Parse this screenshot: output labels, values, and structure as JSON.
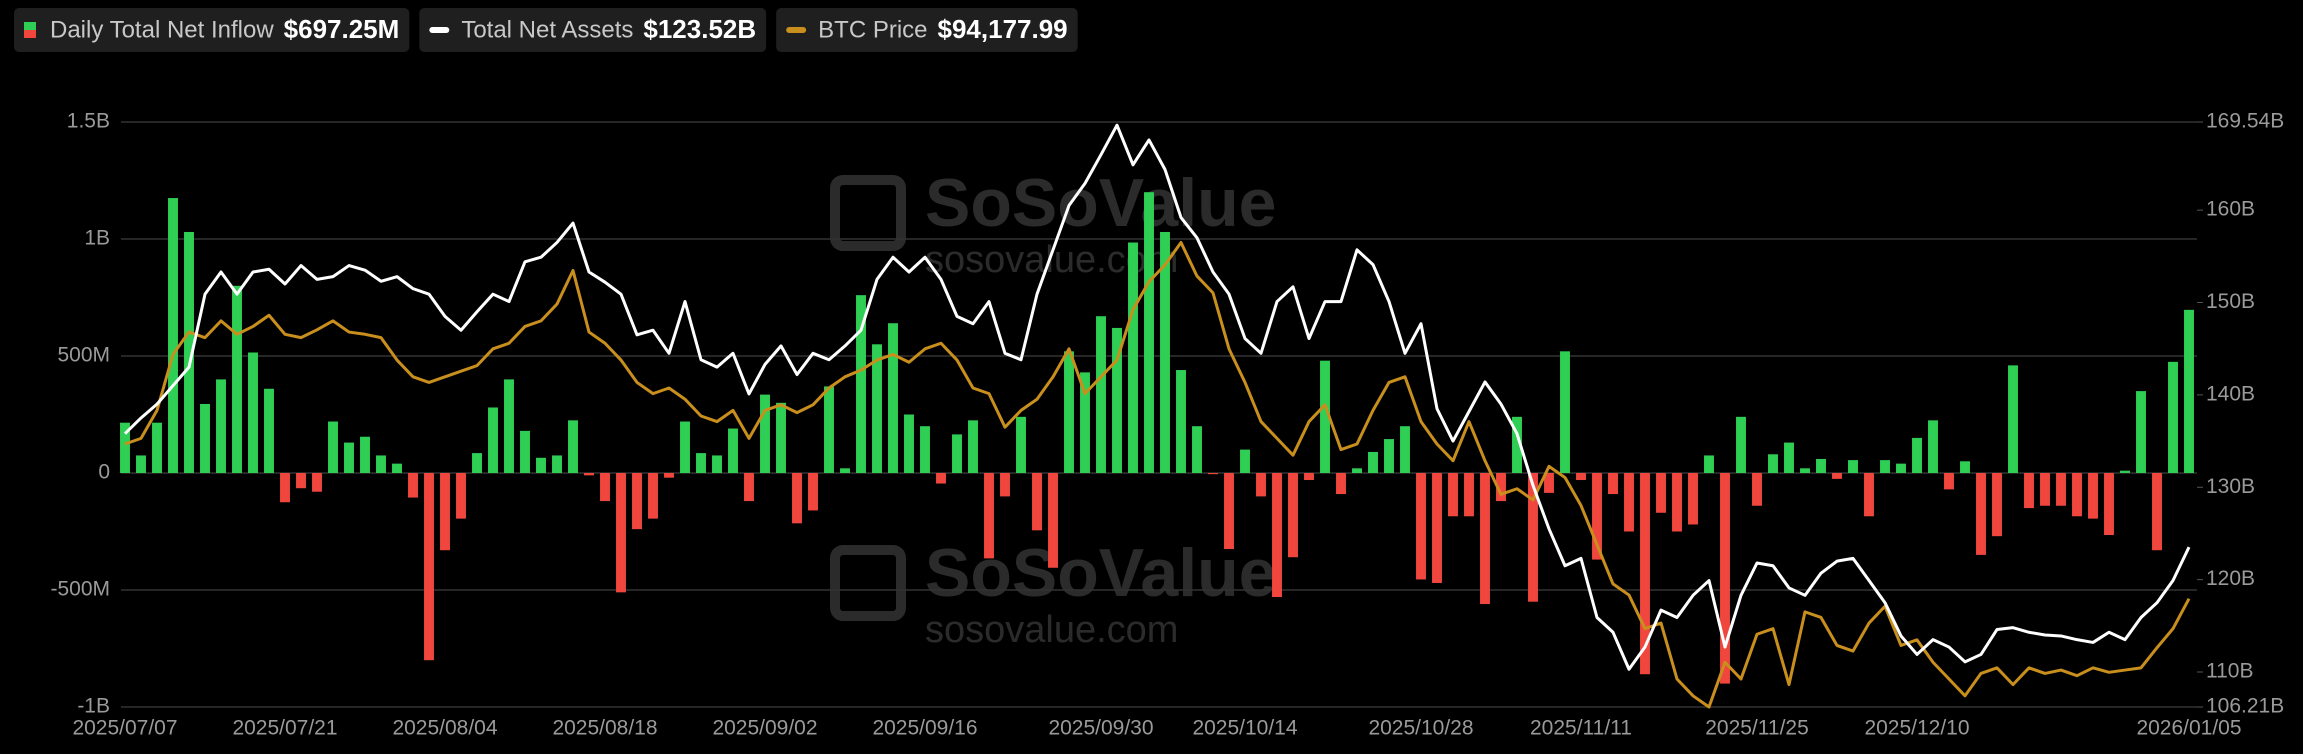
{
  "chart_data": {
    "type": "bar",
    "watermark": [
      "SoSoValue",
      "sosovalue.com"
    ],
    "categories": [
      "2025/07/07",
      null,
      null,
      null,
      null,
      null,
      null,
      null,
      null,
      null,
      "2025/07/21",
      null,
      null,
      null,
      null,
      null,
      null,
      null,
      null,
      null,
      "2025/08/04",
      null,
      null,
      null,
      null,
      null,
      null,
      null,
      null,
      null,
      "2025/08/18",
      null,
      null,
      null,
      null,
      null,
      null,
      null,
      null,
      null,
      "2025/09/02",
      null,
      null,
      null,
      null,
      null,
      null,
      null,
      null,
      null,
      "2025/09/16",
      null,
      null,
      null,
      null,
      null,
      null,
      null,
      null,
      null,
      null,
      "2025/09/30",
      null,
      null,
      null,
      null,
      null,
      null,
      null,
      null,
      "2025/10/14",
      null,
      null,
      null,
      null,
      null,
      null,
      null,
      null,
      null,
      null,
      "2025/10/28",
      null,
      null,
      null,
      null,
      null,
      null,
      null,
      null,
      null,
      "2025/11/11",
      null,
      null,
      null,
      null,
      null,
      null,
      null,
      null,
      null,
      null,
      "2025/11/25",
      null,
      null,
      null,
      null,
      null,
      null,
      null,
      null,
      null,
      "2025/12/10",
      null,
      null,
      null,
      null,
      null,
      null,
      null,
      null,
      null,
      null,
      null,
      null,
      null,
      null,
      null,
      null,
      "2026/01/05"
    ],
    "series": [
      {
        "name": "Daily Total Net Inflow",
        "type": "bar",
        "color": "#2fcf55",
        "negative_color": "#f0463e",
        "current_label": "$697.25M",
        "values": [
          215,
          75,
          215,
          1175,
          1030,
          295,
          400,
          800,
          515,
          360,
          -125,
          -65,
          -80,
          220,
          130,
          155,
          75,
          40,
          -105,
          -800,
          -330,
          -195,
          85,
          280,
          400,
          180,
          65,
          75,
          225,
          -10,
          -120,
          -510,
          -240,
          -195,
          -20,
          220,
          85,
          75,
          190,
          -120,
          335,
          300,
          -215,
          -160,
          370,
          20,
          760,
          550,
          640,
          250,
          200,
          -45,
          165,
          225,
          -365,
          -100,
          240,
          -245,
          -405,
          520,
          430,
          670,
          620,
          985,
          1200,
          1030,
          440,
          200,
          -5,
          -325,
          100,
          -100,
          -530,
          -360,
          -30,
          480,
          -90,
          20,
          90,
          145,
          200,
          -455,
          -470,
          -185,
          -185,
          -560,
          -120,
          240,
          -550,
          -85,
          520,
          -30,
          -370,
          -90,
          -250,
          -860,
          -170,
          -250,
          -220,
          75,
          -900,
          240,
          -140,
          80,
          130,
          20,
          60,
          -25,
          55,
          -185,
          55,
          40,
          150,
          225,
          -70,
          50,
          -350,
          -270,
          460,
          -150,
          -140,
          -140,
          -185,
          -195,
          -265,
          10,
          350,
          -330,
          475,
          697.25
        ]
      },
      {
        "name": "Total Net Assets",
        "type": "line",
        "axis": "y2",
        "color": "#ffffff",
        "current_label": "$123.52B",
        "values": [
          135.8,
          137.5,
          139,
          141,
          143,
          150.9,
          153.3,
          150.9,
          153.3,
          153.6,
          152,
          154,
          152.5,
          152.8,
          154,
          153.5,
          152.3,
          152.8,
          151.5,
          150.9,
          148.5,
          147,
          149,
          150.9,
          150.1,
          154.4,
          154.9,
          156.5,
          158.6,
          153.3,
          152.2,
          150.9,
          146.5,
          147,
          144.5,
          150.1,
          143.8,
          143,
          144.5,
          140.1,
          143.3,
          145.3,
          142.2,
          144.5,
          143.8,
          145.3,
          147,
          152.5,
          154.9,
          153.3,
          154.9,
          152.5,
          148.5,
          147.7,
          150.1,
          144.5,
          143.8,
          150.9,
          155.7,
          160.5,
          162.9,
          166,
          169.2,
          164.9,
          167.6,
          164.4,
          159.2,
          157,
          153.3,
          150.9,
          146.1,
          144.5,
          150.1,
          151.7,
          146.1,
          150.1,
          150.1,
          155.7,
          154.1,
          150.1,
          144.5,
          147.7,
          138.5,
          135,
          138.2,
          141.4,
          139,
          135.8,
          130.2,
          125.5,
          121.5,
          122.3,
          115.9,
          114.3,
          110.3,
          112.7,
          116.7,
          115.9,
          118.3,
          119.9,
          112.7,
          118.3,
          121.8,
          121.5,
          119.1,
          118.3,
          120.7,
          122,
          122.3,
          119.9,
          117.5,
          113.9,
          111.9,
          113.5,
          112.7,
          111.1,
          111.9,
          114.6,
          114.8,
          114.3,
          114,
          113.9,
          113.5,
          113.2,
          114.3,
          113.5,
          115.9,
          117.5,
          119.9,
          123.52
        ]
      },
      {
        "name": "BTC Price",
        "type": "line",
        "axis": "y3",
        "color": "#c98f1d",
        "current_label": "$94,177.99",
        "values": [
          108000,
          108500,
          111000,
          116000,
          118000,
          117500,
          119000,
          117800,
          118500,
          119500,
          117800,
          117500,
          118200,
          119000,
          118000,
          117800,
          117500,
          115500,
          114000,
          113500,
          114000,
          114500,
          115000,
          116500,
          117000,
          118500,
          119000,
          120500,
          123500,
          118000,
          117000,
          115500,
          113500,
          112500,
          113000,
          112000,
          110500,
          110000,
          111000,
          108500,
          111000,
          111500,
          110800,
          111500,
          113000,
          114000,
          114600,
          115500,
          116000,
          115300,
          116500,
          117000,
          115500,
          113000,
          112500,
          109500,
          111000,
          112000,
          114000,
          116500,
          112500,
          114000,
          115500,
          120000,
          122500,
          124000,
          126000,
          123000,
          121500,
          116500,
          113500,
          110000,
          108500,
          107000,
          110000,
          111500,
          107500,
          108000,
          111000,
          113500,
          114000,
          110000,
          108000,
          106500,
          110000,
          106500,
          103500,
          104000,
          103000,
          106000,
          105000,
          102500,
          99000,
          95500,
          94500,
          91500,
          92000,
          87000,
          85500,
          84500,
          88500,
          87000,
          91000,
          91500,
          86500,
          93000,
          92500,
          90000,
          89500,
          92000,
          93500,
          90000,
          90500,
          88500,
          87000,
          85500,
          87500,
          88000,
          86500,
          88000,
          87500,
          87800,
          87300,
          88000,
          87600,
          87800,
          88000,
          89800,
          91500,
          94177.99
        ]
      }
    ],
    "ylim": [
      -1000,
      1500
    ],
    "yticks": [
      {
        "value": 1500,
        "label": "1.5B"
      },
      {
        "value": 1000,
        "label": "1B"
      },
      {
        "value": 500,
        "label": "500M"
      },
      0,
      {
        "value": -500,
        "label": "-500M"
      },
      {
        "value": -1000,
        "label": "-1B"
      }
    ],
    "y2lim": [
      106.21,
      169.54
    ],
    "y2ticks": [
      {
        "value": 169.54,
        "label": "169.54B"
      },
      {
        "value": 160,
        "label": "160B"
      },
      {
        "value": 150,
        "label": "150B"
      },
      {
        "value": 140,
        "label": "140B"
      },
      {
        "value": 130,
        "label": "130B"
      },
      {
        "value": 120,
        "label": "120B"
      },
      {
        "value": 110,
        "label": "110B"
      },
      {
        "value": 106.21,
        "label": "106.21B"
      }
    ],
    "grid": true
  }
}
